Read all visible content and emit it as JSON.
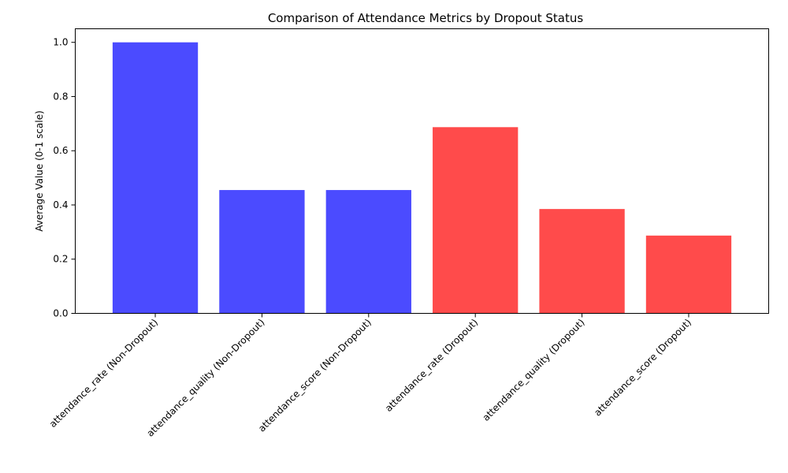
{
  "chart_data": {
    "type": "bar",
    "title": "Comparison of Attendance Metrics by Dropout Status",
    "xlabel": "",
    "ylabel": "Average Value (0-1 scale)",
    "ylim": [
      0,
      1.05
    ],
    "yticks": [
      "0.0",
      "0.2",
      "0.4",
      "0.6",
      "0.8",
      "1.0"
    ],
    "grid": false,
    "categories": [
      "attendance_rate (Non-Dropout)",
      "attendance_quality (Non-Dropout)",
      "attendance_score (Non-Dropout)",
      "attendance_rate (Dropout)",
      "attendance_quality (Dropout)",
      "attendance_score (Dropout)"
    ],
    "values": [
      1.0,
      0.455,
      0.455,
      0.687,
      0.385,
      0.287
    ],
    "colors": [
      "#4b4bff",
      "#4b4bff",
      "#4b4bff",
      "#ff4b4b",
      "#ff4b4b",
      "#ff4b4b"
    ]
  }
}
